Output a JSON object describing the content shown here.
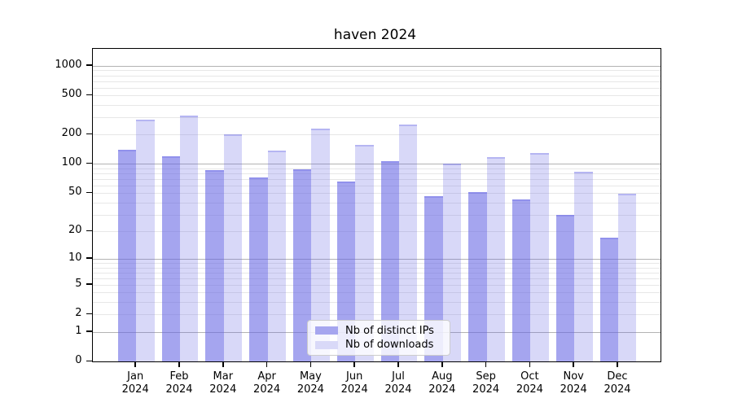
{
  "title": "haven 2024",
  "legend": {
    "items": [
      {
        "label": "Nb of distinct IPs",
        "color": "#a6a6ef"
      },
      {
        "label": "Nb of downloads",
        "color": "#d9d9f8"
      }
    ]
  },
  "chart_data": {
    "type": "bar",
    "title": "haven 2024",
    "x_categories": [
      "Jan",
      "Feb",
      "Mar",
      "Apr",
      "May",
      "Jun",
      "Jul",
      "Aug",
      "Sep",
      "Oct",
      "Nov",
      "Dec"
    ],
    "x_year": "2024",
    "series": [
      {
        "name": "Nb of distinct IPs",
        "fill": "rgba(100,100,228,0.58)",
        "values": [
          139,
          120,
          86,
          73,
          88,
          66,
          107,
          47,
          51,
          43,
          30,
          17
        ]
      },
      {
        "name": "Nb of downloads",
        "fill": "rgba(100,100,228,0.25)",
        "values": [
          285,
          315,
          200,
          138,
          230,
          158,
          252,
          100,
          117,
          129,
          83,
          49
        ]
      }
    ],
    "y_scale": "log1p",
    "y_tick_values": [
      0,
      1,
      2,
      5,
      10,
      20,
      50,
      100,
      200,
      500,
      1000
    ],
    "y_tick_labels": [
      "0",
      "1",
      "2",
      "5",
      "10",
      "20",
      "50",
      "100",
      "200",
      "500",
      "1000"
    ],
    "ylim": [
      0,
      1500
    ],
    "grid": "horizontal",
    "legend_position": "lower-center-inside"
  }
}
